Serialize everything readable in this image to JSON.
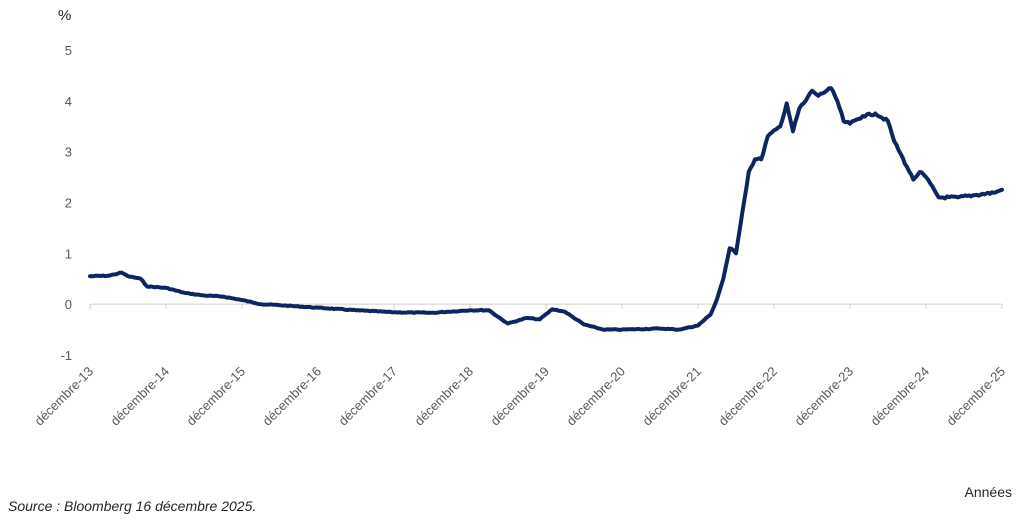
{
  "chart_data": {
    "type": "line",
    "ylabel": "%",
    "xlabel": "Années",
    "ylim": [
      -1,
      5
    ],
    "yticks": [
      5,
      4,
      3,
      2,
      1,
      0,
      -1
    ],
    "xticks": [
      "décembre-13",
      "décembre-14",
      "décembre-15",
      "décembre-16",
      "décembre-17",
      "décembre-18",
      "décembre-19",
      "décembre-20",
      "décembre-21",
      "décembre-22",
      "décembre-23",
      "décembre-24",
      "décembre-25"
    ],
    "grid": false,
    "line_color": "#0d2560",
    "series": [
      {
        "values": [
          {
            "x": "2013-12",
            "y": 0.55
          },
          {
            "x": "2014-03",
            "y": 0.56
          },
          {
            "x": "2014-05",
            "y": 0.62
          },
          {
            "x": "2014-06",
            "y": 0.55
          },
          {
            "x": "2014-08",
            "y": 0.5
          },
          {
            "x": "2014-09",
            "y": 0.35
          },
          {
            "x": "2014-12",
            "y": 0.32
          },
          {
            "x": "2015-03",
            "y": 0.22
          },
          {
            "x": "2015-06",
            "y": 0.17
          },
          {
            "x": "2015-09",
            "y": 0.15
          },
          {
            "x": "2015-12",
            "y": 0.08
          },
          {
            "x": "2016-03",
            "y": 0.0
          },
          {
            "x": "2016-06",
            "y": -0.02
          },
          {
            "x": "2016-12",
            "y": -0.07
          },
          {
            "x": "2017-06",
            "y": -0.12
          },
          {
            "x": "2017-12",
            "y": -0.16
          },
          {
            "x": "2018-06",
            "y": -0.17
          },
          {
            "x": "2018-12",
            "y": -0.12
          },
          {
            "x": "2019-03",
            "y": -0.12
          },
          {
            "x": "2019-05",
            "y": -0.3
          },
          {
            "x": "2019-06",
            "y": -0.38
          },
          {
            "x": "2019-09",
            "y": -0.27
          },
          {
            "x": "2019-11",
            "y": -0.3
          },
          {
            "x": "2020-01",
            "y": -0.1
          },
          {
            "x": "2020-03",
            "y": -0.15
          },
          {
            "x": "2020-06",
            "y": -0.4
          },
          {
            "x": "2020-09",
            "y": -0.5
          },
          {
            "x": "2020-12",
            "y": -0.5
          },
          {
            "x": "2021-06",
            "y": -0.48
          },
          {
            "x": "2021-09",
            "y": -0.5
          },
          {
            "x": "2021-12",
            "y": -0.42
          },
          {
            "x": "2022-02",
            "y": -0.2
          },
          {
            "x": "2022-03",
            "y": 0.1
          },
          {
            "x": "2022-04",
            "y": 0.5
          },
          {
            "x": "2022-05",
            "y": 1.1
          },
          {
            "x": "2022-06",
            "y": 1.0
          },
          {
            "x": "2022-07",
            "y": 1.8
          },
          {
            "x": "2022-08",
            "y": 2.6
          },
          {
            "x": "2022-09",
            "y": 2.85
          },
          {
            "x": "2022-10",
            "y": 2.85
          },
          {
            "x": "2022-11",
            "y": 3.3
          },
          {
            "x": "2023-01",
            "y": 3.5
          },
          {
            "x": "2023-02",
            "y": 3.95
          },
          {
            "x": "2023-03",
            "y": 3.4
          },
          {
            "x": "2023-04",
            "y": 3.85
          },
          {
            "x": "2023-05",
            "y": 4.0
          },
          {
            "x": "2023-06",
            "y": 4.2
          },
          {
            "x": "2023-07",
            "y": 4.1
          },
          {
            "x": "2023-09",
            "y": 4.25
          },
          {
            "x": "2023-10",
            "y": 4.0
          },
          {
            "x": "2023-11",
            "y": 3.6
          },
          {
            "x": "2023-12",
            "y": 3.55
          },
          {
            "x": "2024-02",
            "y": 3.7
          },
          {
            "x": "2024-04",
            "y": 3.75
          },
          {
            "x": "2024-06",
            "y": 3.6
          },
          {
            "x": "2024-07",
            "y": 3.2
          },
          {
            "x": "2024-09",
            "y": 2.7
          },
          {
            "x": "2024-10",
            "y": 2.45
          },
          {
            "x": "2024-11",
            "y": 2.6
          },
          {
            "x": "2024-12",
            "y": 2.5
          },
          {
            "x": "2025-02",
            "y": 2.1
          },
          {
            "x": "2025-05",
            "y": 2.1
          },
          {
            "x": "2025-08",
            "y": 2.15
          },
          {
            "x": "2025-11",
            "y": 2.2
          },
          {
            "x": "2025-12",
            "y": 2.25
          }
        ]
      }
    ]
  },
  "source": "Source : Bloomberg 16 décembre 2025."
}
